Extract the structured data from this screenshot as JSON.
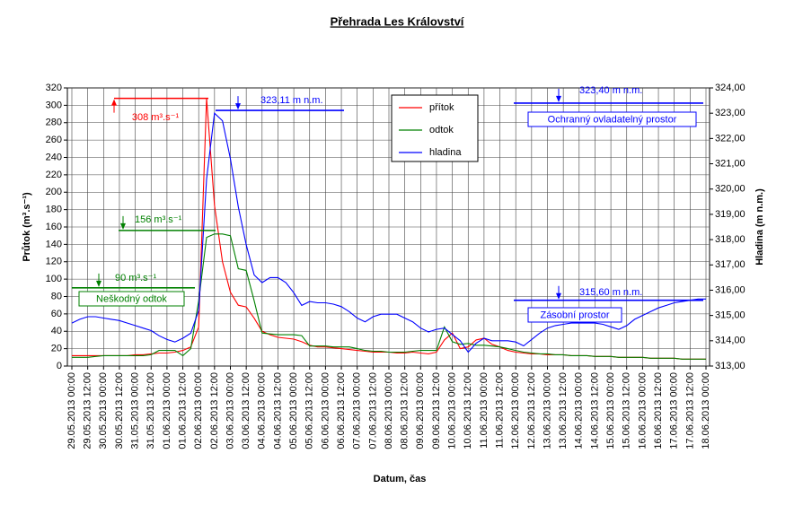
{
  "chart_data": {
    "type": "line",
    "title": "Přehrada Les Království",
    "xlabel": "Datum, čas",
    "ylabel": "Průtok (m³.s⁻¹)",
    "y2label": "Hladina (m n.m.)",
    "categories": [
      "29.05.2013 00:00",
      null,
      "29.05.2013 12:00",
      null,
      "30.05.2013 00:00",
      null,
      "30.05.2013 12:00",
      null,
      "31.05.2013 00:00",
      null,
      "31.05.2013 12:00",
      null,
      "01.06.2013 00:00",
      null,
      "01.06.2013 12:00",
      null,
      "02.06.2013 00:00",
      null,
      "02.06.2013 12:00",
      null,
      "03.06.2013 00:00",
      null,
      "03.06.2013 12:00",
      null,
      "04.06.2013 00:00",
      null,
      "04.06.2013 12:00",
      null,
      "05.06.2013 00:00",
      null,
      "05.06.2013 12:00",
      null,
      "06.06.2013 00:00",
      null,
      "06.06.2013 12:00",
      null,
      "07.06.2013 00:00",
      null,
      "07.06.2013 12:00",
      null,
      "08.06.2013 00:00",
      null,
      "08.06.2013 12:00",
      null,
      "09.06.2013 00:00",
      null,
      "09.06.2013 12:00",
      null,
      "10.06.2013 00:00",
      null,
      "10.06.2013 12:00",
      null,
      "11.06.2013 00:00",
      null,
      "11.06.2013 12:00",
      null,
      "12.06.2013 00:00",
      null,
      "12.06.2013 12:00",
      null,
      "13.06.2013 00:00",
      null,
      "13.06.2013 12:00",
      null,
      "14.06.2013 00:00",
      null,
      "14.06.2013 12:00",
      null,
      "15.06.2013 00:00",
      null,
      "15.06.2013 12:00",
      null,
      "16.06.2013 00:00",
      null,
      "16.06.2013 12:00",
      null,
      "17.06.2013 00:00",
      null,
      "17.06.2013 12:00",
      null,
      "18.06.2013 00:00"
    ],
    "series": [
      {
        "name": "přítok",
        "color": "#ff0000",
        "values": [
          12,
          12,
          12,
          12,
          12,
          12,
          12,
          12,
          13,
          13,
          14,
          15,
          15,
          16,
          18,
          22,
          45,
          308,
          185,
          120,
          85,
          70,
          68,
          55,
          40,
          36,
          33,
          32,
          31,
          28,
          24,
          22,
          22,
          21,
          20,
          19,
          18,
          17,
          16,
          16,
          16,
          15,
          15,
          16,
          15,
          14,
          16,
          30,
          38,
          20,
          22,
          30,
          32,
          25,
          22,
          18,
          16,
          15,
          14,
          14,
          13,
          13,
          13,
          12,
          12,
          12,
          11,
          11,
          11,
          10,
          10,
          10,
          10,
          9,
          9,
          9,
          9,
          8,
          8,
          8,
          8
        ]
      },
      {
        "name": "odtok",
        "color": "#008000",
        "values": [
          10,
          10,
          10,
          11,
          12,
          12,
          12,
          12,
          12,
          12,
          13,
          18,
          18,
          18,
          12,
          20,
          75,
          148,
          152,
          152,
          150,
          112,
          110,
          75,
          38,
          37,
          36,
          36,
          36,
          35,
          23,
          23,
          23,
          22,
          22,
          22,
          20,
          18,
          17,
          17,
          16,
          16,
          16,
          17,
          18,
          18,
          18,
          45,
          28,
          25,
          26,
          24,
          24,
          23,
          22,
          20,
          18,
          16,
          15,
          14,
          14,
          13,
          13,
          12,
          12,
          12,
          11,
          11,
          11,
          10,
          10,
          10,
          10,
          9,
          9,
          9,
          9,
          8,
          8,
          8,
          8
        ]
      },
      {
        "name": "hladina",
        "color": "#0000ff",
        "axis": "y2",
        "values": [
          314.7,
          314.85,
          314.95,
          314.95,
          314.9,
          314.85,
          314.8,
          314.7,
          314.6,
          314.5,
          314.4,
          314.2,
          314.05,
          313.95,
          314.1,
          314.3,
          315.2,
          320.4,
          323.0,
          322.7,
          321.2,
          319.3,
          317.8,
          316.6,
          316.3,
          316.5,
          316.5,
          316.3,
          315.9,
          315.4,
          315.55,
          315.5,
          315.5,
          315.45,
          315.35,
          315.15,
          314.9,
          314.75,
          314.95,
          315.05,
          315.05,
          315.05,
          314.9,
          314.75,
          314.5,
          314.35,
          314.45,
          314.5,
          314.25,
          314.0,
          313.55,
          313.9,
          314.1,
          314.0,
          314.0,
          314.0,
          313.95,
          313.8,
          314.05,
          314.3,
          314.5,
          314.6,
          314.65,
          314.7,
          314.7,
          314.7,
          314.7,
          314.65,
          314.55,
          314.45,
          314.6,
          314.85,
          315.0,
          315.15,
          315.3,
          315.4,
          315.5,
          315.55,
          315.6,
          315.65,
          315.65
        ]
      }
    ],
    "ylim": [
      0,
      320
    ],
    "yticks": [
      0,
      20,
      40,
      60,
      80,
      100,
      120,
      140,
      160,
      180,
      200,
      220,
      240,
      260,
      280,
      300,
      320
    ],
    "y2lim": [
      313,
      324
    ],
    "y2ticks": [
      {
        "value": 313,
        "label": "313,00"
      },
      {
        "value": 314,
        "label": "314,00"
      },
      {
        "value": 315,
        "label": "315,00"
      },
      {
        "value": 316,
        "label": "316,00"
      },
      {
        "value": 317,
        "label": "317,00"
      },
      {
        "value": 318,
        "label": "318,00"
      },
      {
        "value": 319,
        "label": "319,00"
      },
      {
        "value": 320,
        "label": "320,00"
      },
      {
        "value": 321,
        "label": "321,00"
      },
      {
        "value": 322,
        "label": "322,00"
      },
      {
        "value": 323,
        "label": "323,00"
      },
      {
        "value": 324,
        "label": "324,00"
      }
    ],
    "grid": true,
    "legend": "top",
    "annotations": [
      {
        "label": "308 m³.s⁻¹",
        "value": 308,
        "axis": "y",
        "color": "#ff0000"
      },
      {
        "label": "323,11 m n.m.",
        "value": 323.11,
        "axis": "y2",
        "color": "#0000ff"
      },
      {
        "label": "156 m³.s⁻¹",
        "value": 156,
        "axis": "y",
        "color": "#008000"
      },
      {
        "label": "90 m³.s⁻¹",
        "value": 90,
        "axis": "y",
        "color": "#008000",
        "zone": "Neškodný odtok"
      },
      {
        "label": "323,40 m n.m.",
        "value": 323.4,
        "axis": "y2",
        "color": "#0000ff",
        "zone": "Ochranný ovladatelný prostor"
      },
      {
        "label": "315,60 m n.m.",
        "value": 315.6,
        "axis": "y2",
        "color": "#0000ff",
        "zone": "Zásobní prostor"
      }
    ]
  }
}
